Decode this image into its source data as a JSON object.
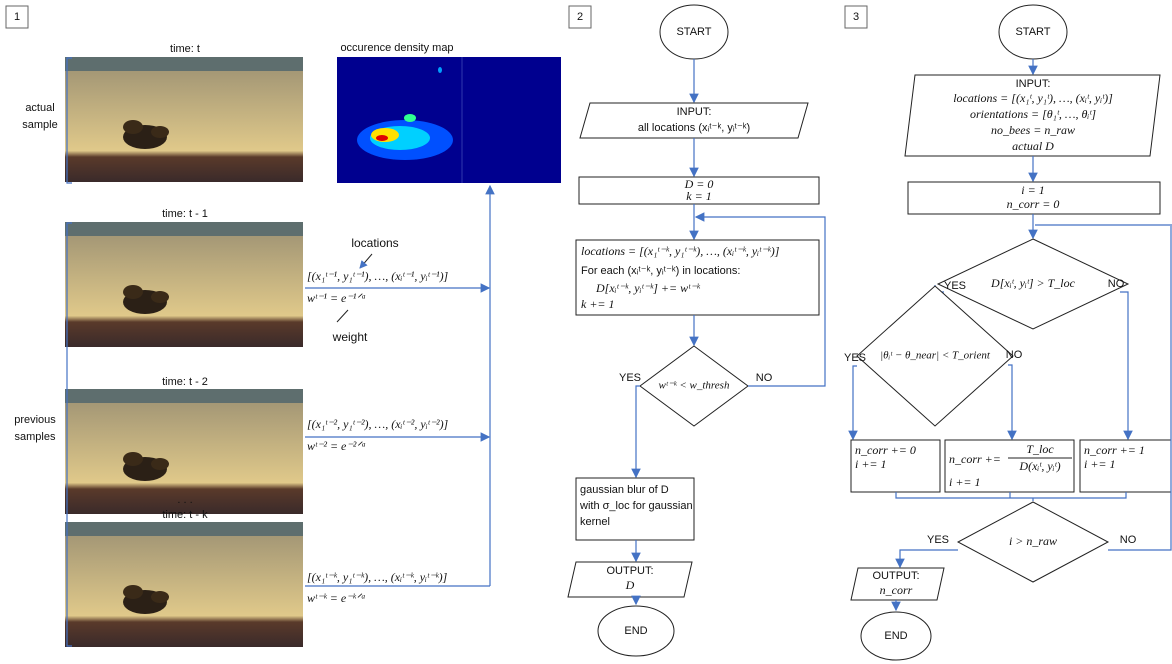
{
  "panel1": {
    "number": "1",
    "time_labels": [
      "time: t",
      "time: t - 1",
      "time: t - 2",
      "time: t - k"
    ],
    "map_title": "occurence density map",
    "actual_sample": [
      "actual",
      "sample"
    ],
    "previous_samples": [
      "previous",
      "samples"
    ],
    "dots": ". . .",
    "locations_note": "locations",
    "weight_note": "weight",
    "location_formulas": [
      "[(x₁ᵗ⁻¹, y₁ᵗ⁻¹), …, (xᵢᵗ⁻¹, yᵢᵗ⁻¹)]",
      "[(x₁ᵗ⁻², y₁ᵗ⁻²), …, (xᵢᵗ⁻², yᵢᵗ⁻²)]",
      "[(x₁ᵗ⁻ᵏ, y₁ᵗ⁻ᵏ), …, (xᵢᵗ⁻ᵏ, yᵢᵗ⁻ᵏ)]"
    ],
    "weight_formulas": [
      "wᵗ⁻¹ = e⁻¹ᐟᵃ",
      "wᵗ⁻² = e⁻²ᐟᵃ",
      "wᵗ⁻ᵏ = e⁻ᵏᐟᵃ"
    ]
  },
  "panel2": {
    "number": "2",
    "start": "START",
    "input": [
      "INPUT:",
      "all locations (xᵢᵗ⁻ᵏ, yᵢᵗ⁻ᵏ)"
    ],
    "init": [
      "D = 0",
      "k = 1"
    ],
    "loop": [
      "locations = [(x₁ᵗ⁻ᵏ, y₁ᵗ⁻ᵏ), …, (xᵢᵗ⁻ᵏ, yᵢᵗ⁻ᵏ)]",
      "For each (xᵢᵗ⁻ᵏ, yᵢᵗ⁻ᵏ) in locations:",
      "D[xᵢᵗ⁻ᵏ, yᵢᵗ⁻ᵏ] += wᵗ⁻ᵏ",
      "k += 1"
    ],
    "condition": "wᵗ⁻ᵏ < w_thresh",
    "yes": "YES",
    "no": "NO",
    "blur": [
      "gaussian blur of D",
      "with σ_loc for gaussian",
      "kernel"
    ],
    "output": [
      "OUTPUT:",
      "D"
    ],
    "end": "END"
  },
  "panel3": {
    "number": "3",
    "start": "START",
    "input": [
      "INPUT:",
      "locations = [(x₁ᵗ, y₁ᵗ), …, (xᵢᵗ, yᵢᵗ)]",
      "orientations = [θ₁ᵗ, …, θᵢᵗ]",
      "no_bees = n_raw",
      "actual D"
    ],
    "init": [
      "i = 1",
      "n_corr = 0"
    ],
    "condition1": "D[xᵢᵗ, yᵢᵗ] > T_loc",
    "yes1": "YES",
    "no1": "NO",
    "condition2": "|θᵢᵗ − θ_near| < T_orient",
    "yes2": "YES",
    "no2": "NO",
    "box_a": [
      "n_corr += 0",
      "i += 1"
    ],
    "box_b": [
      "n_corr +=",
      "T_loc",
      "D(xᵢᵗ, yᵢᵗ)",
      "i += 1"
    ],
    "box_c": [
      "n_corr += 1",
      "i += 1"
    ],
    "condition3": "i > n_raw",
    "yes3": "YES",
    "no3": "NO",
    "output": [
      "OUTPUT:",
      "n_corr"
    ],
    "end": "END"
  }
}
